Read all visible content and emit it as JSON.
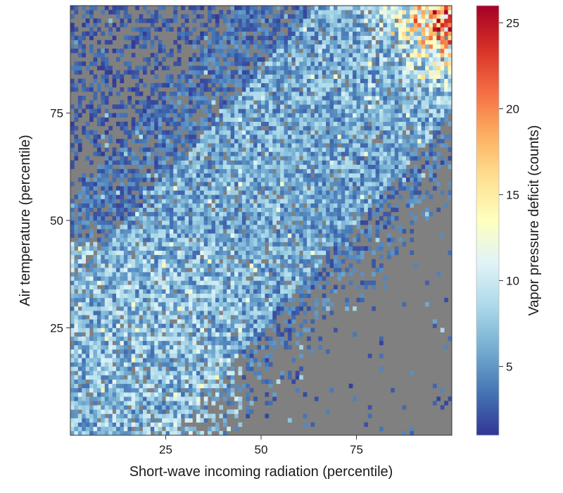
{
  "chart_data": {
    "type": "heatmap",
    "xlabel": "Short-wave incoming radiation (percentile)",
    "ylabel": "Air temperature (percentile)",
    "colorbar_label": "Vapor pressure deficit (counts)",
    "x_ticks": [
      "25",
      "50",
      "75"
    ],
    "y_ticks": [
      "25",
      "50",
      "75"
    ],
    "colorbar_ticks": [
      "5",
      "10",
      "15",
      "20",
      "25"
    ],
    "xlim": [
      0,
      100
    ],
    "ylim": [
      0,
      100
    ],
    "clim": [
      1,
      26
    ],
    "bins": [
      100,
      100
    ],
    "empty_bin_color": "#808080",
    "colormap": "RdYlBu_r",
    "colormap_stops": [
      "#313695",
      "#4575b4",
      "#74add1",
      "#abd9e9",
      "#e0f3f8",
      "#ffffbf",
      "#fee090",
      "#fdae61",
      "#f46d43",
      "#d73027",
      "#a50026"
    ],
    "grid": false,
    "description_of_pattern": [
      {
        "region": "low radiation, low temperature",
        "count_level": "mid (about 5-10)"
      },
      {
        "region": "high radiation, high temperature corner",
        "count_level": "high (up to about 26)"
      },
      {
        "region": "high radiation, low temperature corner",
        "count_level": "empty"
      },
      {
        "region": "low radiation, high temperature corner",
        "count_level": "sparse, low (about 1-4)"
      }
    ]
  }
}
